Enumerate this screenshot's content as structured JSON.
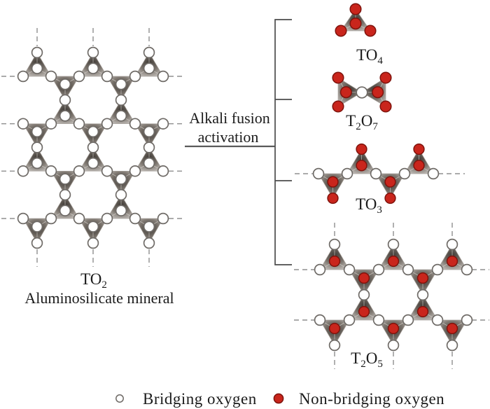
{
  "labels": {
    "to2": {
      "main": "TO",
      "sub": "2"
    },
    "mineral": "Aluminosilicate mineral",
    "process_line1": "Alkali fusion",
    "process_line2": "activation",
    "to4": {
      "main": "TO",
      "sub": "4"
    },
    "t2o7": {
      "p1": "T",
      "s1": "2",
      "p2": "O",
      "s2": "7"
    },
    "to3": {
      "main": "TO",
      "sub": "3"
    },
    "t2o5": {
      "p1": "T",
      "s1": "2",
      "p2": "O",
      "s2": "5"
    }
  },
  "legend": {
    "bridging": "Bridging oxygen",
    "non_bridging": "Non-bridging oxygen"
  },
  "colors": {
    "background": "#ffffff",
    "bridging_fill": "#ffffff",
    "bridging_stroke": "#6f6b67",
    "non_bridging_fill": "#c9251c",
    "non_bridging_stroke": "#7e130c",
    "dash": "#8f8f8f",
    "text": "#1b1b1b",
    "bracket": "#4c4c4c"
  }
}
